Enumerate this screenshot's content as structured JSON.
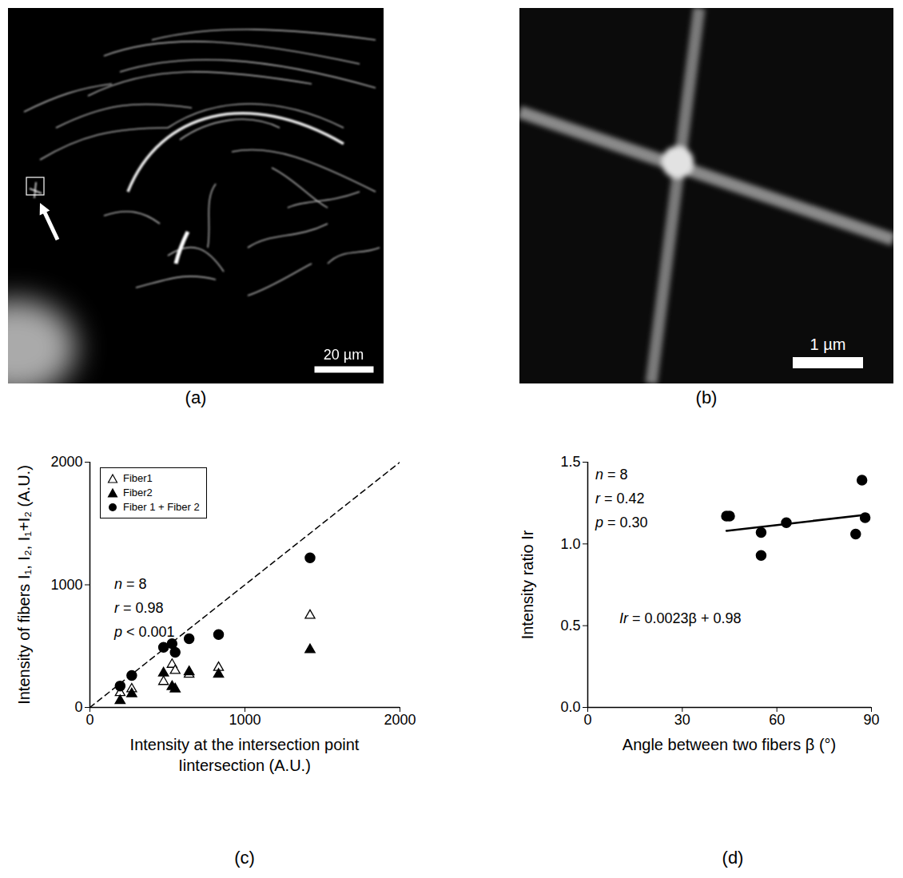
{
  "chart_data": [
    {
      "type": "image",
      "panel": "(a)",
      "scale_bar": "20 µm"
    },
    {
      "type": "image",
      "panel": "(b)",
      "scale_bar": "1 µm"
    },
    {
      "type": "scatter",
      "panel": "(c)",
      "x_label": [
        "Intensity at the intersection point",
        "Iintersection (A.U.)"
      ],
      "y_label": "Intensity of fibers I₁, I₂, I₁+I₂ (A.U.)",
      "x": [
        195,
        270,
        475,
        530,
        550,
        640,
        830,
        1420
      ],
      "series": [
        {
          "name": "Fiber1",
          "marker": "open_triangle",
          "color": "#000000",
          "values": [
            120,
            150,
            210,
            350,
            300,
            270,
            325,
            750
          ]
        },
        {
          "name": "Fiber2",
          "marker": "triangle",
          "color": "#000000",
          "values": [
            55,
            110,
            280,
            170,
            150,
            290,
            270,
            470
          ]
        },
        {
          "name": "Fiber 1 + Fiber 2",
          "marker": "circle",
          "color": "#000000",
          "values": [
            175,
            260,
            490,
            520,
            450,
            560,
            595,
            1220
          ]
        }
      ],
      "reference_line": {
        "x": [
          0,
          2000
        ],
        "values": [
          0,
          2000
        ],
        "line_style": "dashed",
        "color": "#000000"
      },
      "annotations": [
        "n = 8",
        "r = 0.98",
        "p < 0.001"
      ],
      "xlim": [
        0,
        2000
      ],
      "ylim": [
        0,
        2000
      ],
      "xticks": [
        0,
        1000,
        2000
      ],
      "yticks": [
        0,
        1000,
        2000
      ],
      "legend": "top-left"
    },
    {
      "type": "scatter",
      "panel": "(d)",
      "x_label": [
        "Angle between two fibers β (°)"
      ],
      "y_label": "Intensity ratio Ir",
      "x": [
        44,
        45,
        55,
        55,
        63,
        85,
        87,
        88
      ],
      "values": [
        1.17,
        1.17,
        0.93,
        1.07,
        1.13,
        1.06,
        1.39,
        1.16
      ],
      "marker": "circle",
      "color": "#000000",
      "fit_line": {
        "x": [
          44,
          89
        ],
        "values": [
          1.08,
          1.18
        ],
        "line_style": "solid",
        "color": "#000000"
      },
      "annotations": [
        "n = 8",
        "r = 0.42",
        "p = 0.30"
      ],
      "equation": "Ir = 0.0023β + 0.98",
      "xlim": [
        0,
        90
      ],
      "ylim": [
        0,
        1.5
      ],
      "xticks": [
        0,
        30,
        60,
        90
      ],
      "yticks": [
        {
          "value": 0,
          "label": "0.0"
        },
        0.5,
        {
          "value": 1,
          "label": "1.0"
        },
        1.5
      ]
    }
  ]
}
